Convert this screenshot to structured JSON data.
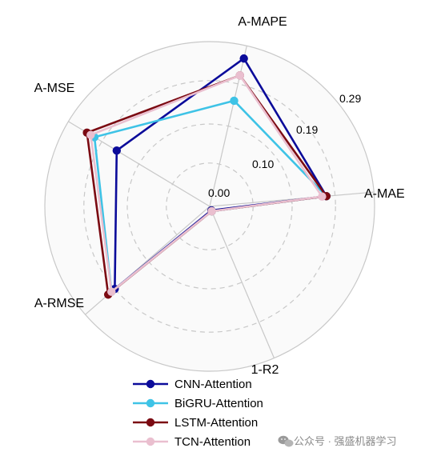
{
  "chart_data": {
    "type": "radar",
    "axes": [
      "A-MAE",
      "A-MAPE",
      "A-MSE",
      "A-RMSE",
      "1-R2"
    ],
    "ticks": [
      "0.00",
      "0.10",
      "0.19",
      "0.29"
    ],
    "rlim": [
      0,
      0.38
    ],
    "grid": true,
    "legend_position": "bottom",
    "series": [
      {
        "name": "CNN-Attention",
        "color": "#0b0b9a",
        "values": [
          0.27,
          0.35,
          0.25,
          0.29,
          0.01
        ]
      },
      {
        "name": "BiGRU-Attention",
        "color": "#3ec3e6",
        "values": [
          0.27,
          0.25,
          0.31,
          0.3,
          0.012
        ]
      },
      {
        "name": "LSTM-Attention",
        "color": "#7b0a12",
        "values": [
          0.27,
          0.31,
          0.33,
          0.31,
          0.012
        ]
      },
      {
        "name": "TCN-Attention",
        "color": "#eabfcf",
        "values": [
          0.26,
          0.31,
          0.32,
          0.3,
          0.012
        ]
      }
    ]
  },
  "watermark": {
    "icon": "wechat-icon",
    "text": "公众号 · 强盛机器学习"
  }
}
